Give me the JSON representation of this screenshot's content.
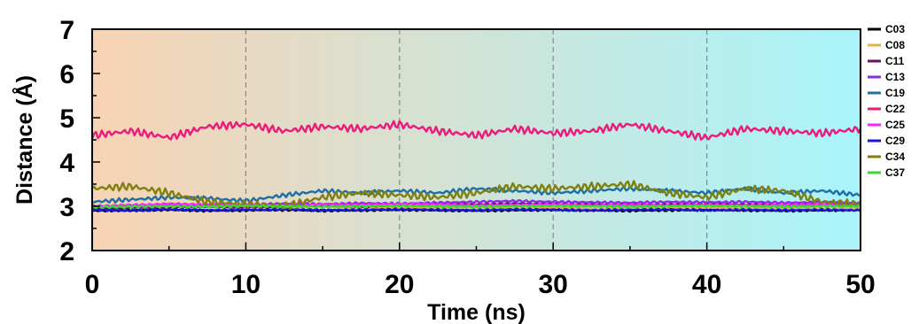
{
  "chart_data": {
    "type": "line",
    "xlabel": "Time (ns)",
    "ylabel": "Distance (Å)",
    "xlim": [
      0,
      50
    ],
    "ylim": [
      2,
      7
    ],
    "x_ticks": [
      0,
      10,
      20,
      30,
      40,
      50
    ],
    "y_ticks": [
      2,
      3,
      4,
      5,
      6,
      7
    ],
    "vertical_dashed_lines_at": [
      10,
      20,
      30,
      40
    ],
    "background_gradient": [
      "#f8d3b4",
      "#a8f4fb"
    ],
    "legend_position": "right",
    "x": [
      0,
      2.5,
      5,
      7.5,
      10,
      12.5,
      15,
      17.5,
      20,
      22.5,
      25,
      27.5,
      30,
      32.5,
      35,
      37.5,
      40,
      42.5,
      45,
      47.5,
      50
    ],
    "series": [
      {
        "name": "C03",
        "color": "#000000",
        "values": [
          2.9,
          2.91,
          2.92,
          2.9,
          2.91,
          2.92,
          2.9,
          2.91,
          2.92,
          2.91,
          2.9,
          2.91,
          2.92,
          2.91,
          2.9,
          2.91,
          2.92,
          2.91,
          2.9,
          2.91,
          2.92
        ]
      },
      {
        "name": "C08",
        "color": "#e8b04a",
        "values": [
          2.95,
          2.97,
          3.0,
          2.98,
          2.96,
          2.97,
          2.99,
          2.95,
          2.98,
          2.96,
          2.97,
          2.95,
          2.98,
          2.94,
          2.96,
          2.95,
          2.97,
          2.95,
          2.96,
          2.94,
          2.95
        ]
      },
      {
        "name": "C11",
        "color": "#6a0f6a",
        "values": [
          2.95,
          2.97,
          2.99,
          3.0,
          2.98,
          3.0,
          3.02,
          3.0,
          3.03,
          3.05,
          3.04,
          3.06,
          3.05,
          3.04,
          3.03,
          3.04,
          3.05,
          3.04,
          3.03,
          3.04,
          3.03
        ]
      },
      {
        "name": "C13",
        "color": "#8a2be2",
        "values": [
          3.0,
          3.02,
          3.05,
          3.03,
          3.04,
          3.06,
          3.05,
          3.07,
          3.06,
          3.08,
          3.1,
          3.12,
          3.1,
          3.09,
          3.08,
          3.1,
          3.09,
          3.1,
          3.08,
          3.09,
          3.08
        ]
      },
      {
        "name": "C19",
        "color": "#1d6fa8",
        "values": [
          3.1,
          3.15,
          3.2,
          3.18,
          3.12,
          3.25,
          3.35,
          3.3,
          3.35,
          3.3,
          3.4,
          3.35,
          3.3,
          3.35,
          3.4,
          3.35,
          3.3,
          3.4,
          3.3,
          3.35,
          3.25
        ]
      },
      {
        "name": "C22",
        "color": "#ec1a7a",
        "values": [
          4.6,
          4.7,
          4.55,
          4.8,
          4.85,
          4.7,
          4.8,
          4.75,
          4.85,
          4.7,
          4.6,
          4.75,
          4.65,
          4.7,
          4.85,
          4.7,
          4.55,
          4.75,
          4.7,
          4.65,
          4.75
        ]
      },
      {
        "name": "C25",
        "color": "#ff22ff",
        "values": [
          3.0,
          3.02,
          3.05,
          3.04,
          3.03,
          3.02,
          3.04,
          3.03,
          3.05,
          3.04,
          3.02,
          3.03,
          3.04,
          3.02,
          3.03,
          3.02,
          3.03,
          3.02,
          3.03,
          3.04,
          3.02
        ]
      },
      {
        "name": "C29",
        "color": "#1515e6",
        "values": [
          2.92,
          2.9,
          2.93,
          2.91,
          2.92,
          2.93,
          2.91,
          2.92,
          2.93,
          2.92,
          2.91,
          2.93,
          2.92,
          2.91,
          2.92,
          2.93,
          2.91,
          2.92,
          2.91,
          2.92,
          2.91
        ]
      },
      {
        "name": "C34",
        "color": "#808010",
        "values": [
          3.4,
          3.45,
          3.3,
          3.1,
          3.05,
          3.0,
          3.2,
          3.3,
          3.25,
          3.2,
          3.3,
          3.45,
          3.4,
          3.45,
          3.5,
          3.3,
          3.2,
          3.4,
          3.35,
          3.1,
          3.05
        ]
      },
      {
        "name": "C37",
        "color": "#33dd33",
        "values": [
          2.98,
          2.99,
          3.0,
          2.99,
          3.01,
          3.0,
          2.99,
          3.0,
          3.01,
          3.0,
          2.99,
          3.0,
          3.01,
          3.0,
          2.99,
          3.0,
          3.01,
          3.0,
          2.99,
          3.0,
          3.0
        ]
      }
    ]
  }
}
